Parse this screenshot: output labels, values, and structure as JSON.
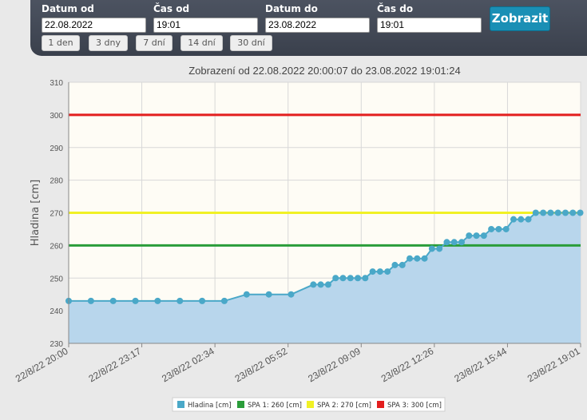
{
  "filters": {
    "date_from": {
      "label": "Datum od",
      "value": "22.08.2022"
    },
    "time_from": {
      "label": "Čas od",
      "value": "19:01"
    },
    "date_to": {
      "label": "Datum do",
      "value": "23.08.2022"
    },
    "time_to": {
      "label": "Čas do",
      "value": "19:01"
    },
    "submit_label": "Zobrazit",
    "presets": [
      "1 den",
      "3 dny",
      "7 dní",
      "14 dní",
      "30 dní"
    ]
  },
  "colors": {
    "panel": "#3f4551",
    "accent": "#1a8fb5",
    "series": "#4aa8c8",
    "area": "#b8d6ec",
    "spa1": "#2a9d3a",
    "spa2": "#f1f125",
    "spa3": "#e31e1e",
    "plot_bg": "#fefcf5"
  },
  "chart_data": {
    "type": "area",
    "title": "Zobrazení od 22.08.2022 20:00:07 do 23.08.2022 19:01:24",
    "ylabel": "Hladina [cm]",
    "xlabel": "",
    "x_range": [
      "2022-08-22T20:00",
      "2022-08-23T19:01"
    ],
    "ylim": [
      230,
      310
    ],
    "y_ticks": [
      230,
      240,
      250,
      260,
      270,
      280,
      290,
      300,
      310
    ],
    "x_tick_labels": [
      "22/8/22 20:00",
      "22/8/22 23:17",
      "23/8/22 02:34",
      "23/8/22 05:52",
      "23/8/22 09:09",
      "23/8/22 12:26",
      "23/8/22 15:44",
      "23/8/22 19:01"
    ],
    "grid": true,
    "legend_position": "bottom-center",
    "series": [
      {
        "name": "Hladina [cm]",
        "x": [
          "2022-08-22T20:00",
          "2022-08-22T21:00",
          "2022-08-22T22:00",
          "2022-08-22T23:00",
          "2022-08-23T00:00",
          "2022-08-23T01:00",
          "2022-08-23T02:00",
          "2022-08-23T03:00",
          "2022-08-23T04:00",
          "2022-08-23T05:00",
          "2022-08-23T06:00",
          "2022-08-23T07:00",
          "2022-08-23T07:20",
          "2022-08-23T07:40",
          "2022-08-23T08:00",
          "2022-08-23T08:20",
          "2022-08-23T08:40",
          "2022-08-23T09:00",
          "2022-08-23T09:20",
          "2022-08-23T09:40",
          "2022-08-23T10:00",
          "2022-08-23T10:20",
          "2022-08-23T10:40",
          "2022-08-23T11:00",
          "2022-08-23T11:20",
          "2022-08-23T11:40",
          "2022-08-23T12:00",
          "2022-08-23T12:20",
          "2022-08-23T12:40",
          "2022-08-23T13:00",
          "2022-08-23T13:20",
          "2022-08-23T13:40",
          "2022-08-23T14:00",
          "2022-08-23T14:20",
          "2022-08-23T14:40",
          "2022-08-23T15:00",
          "2022-08-23T15:20",
          "2022-08-23T15:40",
          "2022-08-23T16:00",
          "2022-08-23T16:20",
          "2022-08-23T16:40",
          "2022-08-23T17:00",
          "2022-08-23T17:20",
          "2022-08-23T17:40",
          "2022-08-23T18:00",
          "2022-08-23T18:20",
          "2022-08-23T18:40",
          "2022-08-23T19:00"
        ],
        "values": [
          243,
          243,
          243,
          243,
          243,
          243,
          243,
          243,
          245,
          245,
          245,
          248,
          248,
          248,
          250,
          250,
          250,
          250,
          250,
          252,
          252,
          252,
          254,
          254,
          256,
          256,
          256,
          259,
          259,
          261,
          261,
          261,
          263,
          263,
          263,
          265,
          265,
          265,
          268,
          268,
          268,
          270,
          270,
          270,
          270,
          270,
          270,
          270
        ]
      },
      {
        "name": "SPA 1: 260 [cm]",
        "values": [
          260
        ]
      },
      {
        "name": "SPA 2: 270 [cm]",
        "values": [
          270
        ]
      },
      {
        "name": "SPA 3: 300 [cm]",
        "values": [
          300
        ]
      }
    ]
  }
}
